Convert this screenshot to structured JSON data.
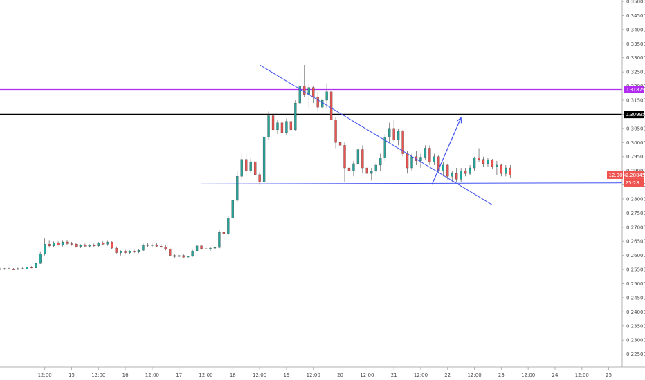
{
  "chart_data": {
    "type": "candlestick",
    "colors": {
      "up": "#26a69a",
      "down": "#ef5350",
      "purple_line": "#b12cf0",
      "black_line": "#000000",
      "current_line": "#ef9a9a",
      "trendline": "#3f51f0"
    },
    "y_axis": {
      "ylim": [
        0.2205,
        0.3505
      ],
      "ticks": [
        "0.35000",
        "0.34500",
        "0.34000",
        "0.33500",
        "0.33000",
        "0.32500",
        "0.32000",
        "0.31500",
        "0.31000",
        "0.30500",
        "0.30000",
        "0.29500",
        "0.29000",
        "0.28500",
        "0.28000",
        "0.27500",
        "0.27000",
        "0.26500",
        "0.26000",
        "0.25500",
        "0.25000",
        "0.24500",
        "0.24000",
        "0.23500",
        "0.23000",
        "0.22500"
      ]
    },
    "x_axis": {
      "unit": "hours from Sep 14 00:00",
      "xlim": [
        -8,
        270
      ],
      "ticks": [
        {
          "t": 12,
          "label": "12:00"
        },
        {
          "t": 24,
          "label": "15"
        },
        {
          "t": 36,
          "label": "12:00"
        },
        {
          "t": 48,
          "label": "16"
        },
        {
          "t": 60,
          "label": "12:00"
        },
        {
          "t": 72,
          "label": "17"
        },
        {
          "t": 84,
          "label": "12:00"
        },
        {
          "t": 96,
          "label": "18"
        },
        {
          "t": 108,
          "label": "12:00"
        },
        {
          "t": 120,
          "label": "19"
        },
        {
          "t": 132,
          "label": "12:00"
        },
        {
          "t": 144,
          "label": "20"
        },
        {
          "t": 156,
          "label": "12:00"
        },
        {
          "t": 168,
          "label": "21"
        },
        {
          "t": 180,
          "label": "12:00"
        },
        {
          "t": 192,
          "label": "22"
        },
        {
          "t": 204,
          "label": "12:00"
        },
        {
          "t": 216,
          "label": "23"
        },
        {
          "t": 228,
          "label": "12:00"
        },
        {
          "t": 240,
          "label": "24"
        },
        {
          "t": 252,
          "label": "12:00"
        },
        {
          "t": 264,
          "label": "25"
        }
      ]
    },
    "horizontal_levels": [
      {
        "name": "resistance-purple",
        "value": 0.31879,
        "label": "0.31879",
        "color": "#b12cf0"
      },
      {
        "name": "resistance-black",
        "value": 0.30995,
        "label": "0.30995",
        "color": "#000000"
      }
    ],
    "current_price": {
      "value": 0.28845,
      "label": "0.28845",
      "percent_label": "12.90%",
      "countdown": "25:28"
    },
    "trendlines": [
      {
        "name": "descending-resistance",
        "t1": 108,
        "p1": 0.3275,
        "t2": 212,
        "p2": 0.2779
      },
      {
        "name": "horizontal-support",
        "t1": 82,
        "p1": 0.2853,
        "t2": 270,
        "p2": 0.2857
      }
    ],
    "projection_arrow": {
      "t1": 185,
      "p1": 0.2851,
      "t2": 198,
      "p2": 0.3088
    },
    "candles": [
      [
        -8,
        0.2552,
        0.2556,
        0.255,
        0.2551
      ],
      [
        -6,
        0.2551,
        0.2555,
        0.2549,
        0.2553
      ],
      [
        -4,
        0.2553,
        0.2556,
        0.255,
        0.2551
      ],
      [
        -2,
        0.2551,
        0.2555,
        0.2549,
        0.255
      ],
      [
        0,
        0.255,
        0.2556,
        0.2549,
        0.2553
      ],
      [
        2,
        0.2553,
        0.2557,
        0.2551,
        0.2552
      ],
      [
        4,
        0.2552,
        0.256,
        0.2551,
        0.2558
      ],
      [
        6,
        0.2558,
        0.2562,
        0.2554,
        0.2556
      ],
      [
        8,
        0.2556,
        0.2575,
        0.2555,
        0.2572
      ],
      [
        10,
        0.2572,
        0.2612,
        0.257,
        0.2605
      ],
      [
        12,
        0.2605,
        0.266,
        0.26,
        0.264
      ],
      [
        14,
        0.264,
        0.2652,
        0.2628,
        0.2634
      ],
      [
        16,
        0.2634,
        0.265,
        0.263,
        0.2645
      ],
      [
        18,
        0.2645,
        0.265,
        0.2635,
        0.2638
      ],
      [
        20,
        0.2638,
        0.2652,
        0.2632,
        0.2648
      ],
      [
        22,
        0.2648,
        0.2653,
        0.2638,
        0.2642
      ],
      [
        24,
        0.2642,
        0.2648,
        0.2635,
        0.264
      ],
      [
        26,
        0.264,
        0.2645,
        0.2628,
        0.2632
      ],
      [
        28,
        0.2632,
        0.264,
        0.2626,
        0.2636
      ],
      [
        30,
        0.2636,
        0.2642,
        0.263,
        0.2633
      ],
      [
        32,
        0.2633,
        0.264,
        0.2628,
        0.2637
      ],
      [
        34,
        0.2637,
        0.2642,
        0.263,
        0.2634
      ],
      [
        36,
        0.2634,
        0.2648,
        0.263,
        0.2644
      ],
      [
        38,
        0.2644,
        0.265,
        0.2636,
        0.264
      ],
      [
        40,
        0.264,
        0.2652,
        0.2634,
        0.2648
      ],
      [
        42,
        0.2648,
        0.265,
        0.2622,
        0.2626
      ],
      [
        44,
        0.2626,
        0.2632,
        0.2604,
        0.261
      ],
      [
        46,
        0.261,
        0.2618,
        0.26,
        0.2614
      ],
      [
        48,
        0.2614,
        0.262,
        0.2606,
        0.261
      ],
      [
        50,
        0.261,
        0.2618,
        0.2604,
        0.2615
      ],
      [
        52,
        0.2615,
        0.262,
        0.2608,
        0.2612
      ],
      [
        54,
        0.2612,
        0.2622,
        0.2608,
        0.2618
      ],
      [
        56,
        0.2618,
        0.2642,
        0.2615,
        0.2638
      ],
      [
        58,
        0.2638,
        0.2645,
        0.263,
        0.2635
      ],
      [
        60,
        0.2635,
        0.2642,
        0.2628,
        0.2638
      ],
      [
        62,
        0.2638,
        0.2643,
        0.263,
        0.2633
      ],
      [
        64,
        0.2633,
        0.264,
        0.2626,
        0.263
      ],
      [
        66,
        0.263,
        0.2636,
        0.2618,
        0.2622
      ],
      [
        68,
        0.2622,
        0.2628,
        0.2596,
        0.26
      ],
      [
        70,
        0.26,
        0.2606,
        0.259,
        0.2596
      ],
      [
        72,
        0.2596,
        0.2604,
        0.2592,
        0.26
      ],
      [
        74,
        0.26,
        0.2604,
        0.259,
        0.2594
      ],
      [
        76,
        0.2594,
        0.2602,
        0.259,
        0.2598
      ],
      [
        78,
        0.2598,
        0.262,
        0.2595,
        0.2616
      ],
      [
        80,
        0.2616,
        0.264,
        0.2612,
        0.2634
      ],
      [
        82,
        0.2634,
        0.2638,
        0.262,
        0.2624
      ],
      [
        84,
        0.2624,
        0.2632,
        0.2618,
        0.2622
      ],
      [
        86,
        0.2622,
        0.263,
        0.2616,
        0.2626
      ],
      [
        88,
        0.2626,
        0.264,
        0.262,
        0.2628
      ],
      [
        90,
        0.2628,
        0.269,
        0.2625,
        0.2682
      ],
      [
        92,
        0.2682,
        0.27,
        0.2668,
        0.2676
      ],
      [
        94,
        0.2676,
        0.274,
        0.2672,
        0.2732
      ],
      [
        96,
        0.2732,
        0.28,
        0.2728,
        0.2795
      ],
      [
        98,
        0.2795,
        0.29,
        0.279,
        0.288
      ],
      [
        100,
        0.288,
        0.296,
        0.2868,
        0.294
      ],
      [
        102,
        0.294,
        0.2958,
        0.288,
        0.29
      ],
      [
        104,
        0.29,
        0.2945,
        0.289,
        0.2932
      ],
      [
        106,
        0.2932,
        0.294,
        0.2875,
        0.2886
      ],
      [
        108,
        0.2886,
        0.2895,
        0.285,
        0.286
      ],
      [
        110,
        0.286,
        0.303,
        0.2855,
        0.302
      ],
      [
        112,
        0.302,
        0.311,
        0.301,
        0.3095
      ],
      [
        114,
        0.3095,
        0.311,
        0.303,
        0.3045
      ],
      [
        116,
        0.3045,
        0.308,
        0.303,
        0.307
      ],
      [
        118,
        0.307,
        0.308,
        0.302,
        0.3035
      ],
      [
        120,
        0.3035,
        0.3085,
        0.3025,
        0.3075
      ],
      [
        122,
        0.3075,
        0.3085,
        0.3035,
        0.3045
      ],
      [
        124,
        0.3045,
        0.315,
        0.304,
        0.314
      ],
      [
        126,
        0.314,
        0.325,
        0.313,
        0.32
      ],
      [
        128,
        0.32,
        0.3275,
        0.316,
        0.317
      ],
      [
        130,
        0.317,
        0.321,
        0.312,
        0.3195
      ],
      [
        132,
        0.3195,
        0.32,
        0.314,
        0.316
      ],
      [
        134,
        0.316,
        0.318,
        0.311,
        0.3125
      ],
      [
        136,
        0.3125,
        0.317,
        0.31,
        0.315
      ],
      [
        138,
        0.315,
        0.321,
        0.312,
        0.318
      ],
      [
        140,
        0.318,
        0.319,
        0.307,
        0.308
      ],
      [
        142,
        0.308,
        0.309,
        0.298,
        0.3
      ],
      [
        144,
        0.3,
        0.303,
        0.296,
        0.299
      ],
      [
        146,
        0.299,
        0.3,
        0.286,
        0.291
      ],
      [
        148,
        0.291,
        0.293,
        0.287,
        0.29
      ],
      [
        150,
        0.29,
        0.2935,
        0.288,
        0.2925
      ],
      [
        152,
        0.2925,
        0.299,
        0.2915,
        0.2975
      ],
      [
        154,
        0.2975,
        0.299,
        0.289,
        0.291
      ],
      [
        156,
        0.291,
        0.292,
        0.284,
        0.289
      ],
      [
        158,
        0.289,
        0.291,
        0.2865,
        0.2898
      ],
      [
        160,
        0.2898,
        0.293,
        0.2885,
        0.292
      ],
      [
        162,
        0.292,
        0.296,
        0.29,
        0.2945
      ],
      [
        164,
        0.2945,
        0.303,
        0.2935,
        0.302
      ],
      [
        166,
        0.302,
        0.307,
        0.3,
        0.305
      ],
      [
        168,
        0.305,
        0.308,
        0.3,
        0.301
      ],
      [
        170,
        0.301,
        0.305,
        0.299,
        0.304
      ],
      [
        172,
        0.304,
        0.3045,
        0.295,
        0.296
      ],
      [
        174,
        0.296,
        0.297,
        0.289,
        0.291
      ],
      [
        176,
        0.291,
        0.296,
        0.29,
        0.295
      ],
      [
        178,
        0.295,
        0.297,
        0.292,
        0.2935
      ],
      [
        180,
        0.2935,
        0.296,
        0.291,
        0.2948
      ],
      [
        182,
        0.2948,
        0.299,
        0.294,
        0.298
      ],
      [
        184,
        0.298,
        0.299,
        0.292,
        0.293
      ],
      [
        186,
        0.293,
        0.296,
        0.292,
        0.295
      ],
      [
        188,
        0.295,
        0.2955,
        0.289,
        0.29
      ],
      [
        190,
        0.29,
        0.293,
        0.288,
        0.292
      ],
      [
        192,
        0.292,
        0.2925,
        0.287,
        0.288
      ],
      [
        194,
        0.288,
        0.29,
        0.286,
        0.289
      ],
      [
        196,
        0.289,
        0.291,
        0.286,
        0.287
      ],
      [
        198,
        0.287,
        0.291,
        0.286,
        0.29
      ],
      [
        200,
        0.29,
        0.291,
        0.288,
        0.289
      ],
      [
        202,
        0.289,
        0.292,
        0.2885,
        0.291
      ],
      [
        204,
        0.291,
        0.295,
        0.29,
        0.2945
      ],
      [
        206,
        0.2945,
        0.298,
        0.293,
        0.294
      ],
      [
        208,
        0.294,
        0.295,
        0.2915,
        0.2925
      ],
      [
        210,
        0.2925,
        0.2945,
        0.2915,
        0.2938
      ],
      [
        212,
        0.2938,
        0.2942,
        0.2905,
        0.2915
      ],
      [
        214,
        0.2915,
        0.2935,
        0.2885,
        0.292
      ],
      [
        216,
        0.292,
        0.2925,
        0.288,
        0.289
      ],
      [
        218,
        0.289,
        0.292,
        0.288,
        0.291
      ],
      [
        220,
        0.291,
        0.292,
        0.2875,
        0.2885
      ]
    ]
  }
}
